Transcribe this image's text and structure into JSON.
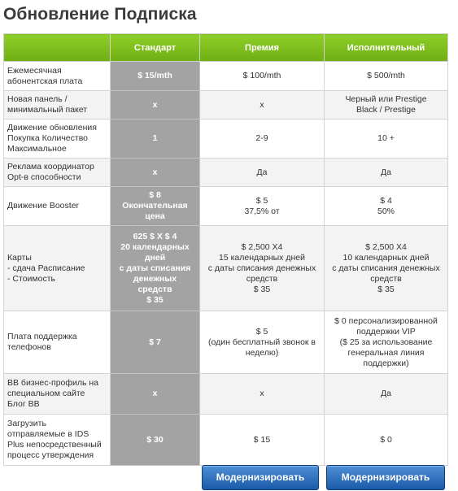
{
  "page": {
    "title": "Обновление Подписка"
  },
  "table": {
    "headers": [
      "",
      "Стандарт",
      "Премия",
      "Исполнительный"
    ],
    "rows": [
      {
        "feature": [
          "Ежемесячная",
          "абонентская плата"
        ],
        "standard": [
          "$ 15/mth"
        ],
        "premium": [
          "$ 100/mth"
        ],
        "executive": [
          "$ 500/mth"
        ]
      },
      {
        "feature": [
          "Новая панель /",
          "минимальный пакет"
        ],
        "standard": [
          "x"
        ],
        "premium": [
          "x"
        ],
        "executive": [
          "Черный или Prestige",
          "Black / Prestige"
        ]
      },
      {
        "feature": [
          "Движение обновления",
          "Покупка Количество",
          "Максимальное"
        ],
        "standard": [
          "1"
        ],
        "premium": [
          "2-9"
        ],
        "executive": [
          "10 +"
        ]
      },
      {
        "feature": [
          "Реклама координатор",
          "Opt-в способности"
        ],
        "standard": [
          "x"
        ],
        "premium": [
          "Да"
        ],
        "executive": [
          "Да"
        ]
      },
      {
        "feature": [
          "Движение Booster"
        ],
        "standard": [
          "$ 8",
          "Окончательная",
          "цена"
        ],
        "premium": [
          "$ 5",
          "37,5% от"
        ],
        "executive": [
          "$ 4",
          "50%"
        ]
      },
      {
        "feature": [
          "Карты",
          "- сдача Расписание",
          "- Стоимость"
        ],
        "standard": [
          "625 $ X $ 4",
          "20 календарных",
          "дней",
          "с даты списания",
          "денежных",
          "средств",
          "$ 35"
        ],
        "premium": [
          "$ 2,500 X4",
          "15 календарных дней",
          "с даты списания денежных",
          "средств",
          "$ 35"
        ],
        "executive": [
          "$ 2,500 X4",
          "10 календарных дней",
          "с даты списания денежных",
          "средств",
          "$ 35"
        ]
      },
      {
        "feature": [
          "Плата поддержка",
          "телефонов"
        ],
        "standard": [
          "$ 7"
        ],
        "premium": [
          "$ 5",
          "(один бесплатный звонок в",
          "неделю)"
        ],
        "executive": [
          "$ 0 персонализированной",
          "поддержки VIP",
          "($ 25 за использование",
          "генеральная линия",
          "поддержки)"
        ]
      },
      {
        "feature": [
          "BB бизнес-профиль на",
          "специальном сайте",
          "Блог BB"
        ],
        "standard": [
          "x"
        ],
        "premium": [
          "x"
        ],
        "executive": [
          "Да"
        ]
      },
      {
        "feature": [
          "Загрузить",
          "отправляемые в IDS",
          "Plus непосредственный",
          "процесс утверждения"
        ],
        "standard": [
          "$ 30"
        ],
        "premium": [
          "$ 15"
        ],
        "executive": [
          "$ 0"
        ]
      }
    ]
  },
  "buttons": {
    "premium_upgrade": "Модернизировать",
    "executive_upgrade": "Модернизировать"
  },
  "colors": {
    "header_green": "#7bbd1c",
    "standard_column_gray": "#a3a3a3",
    "button_blue": "#2a6bb8"
  }
}
